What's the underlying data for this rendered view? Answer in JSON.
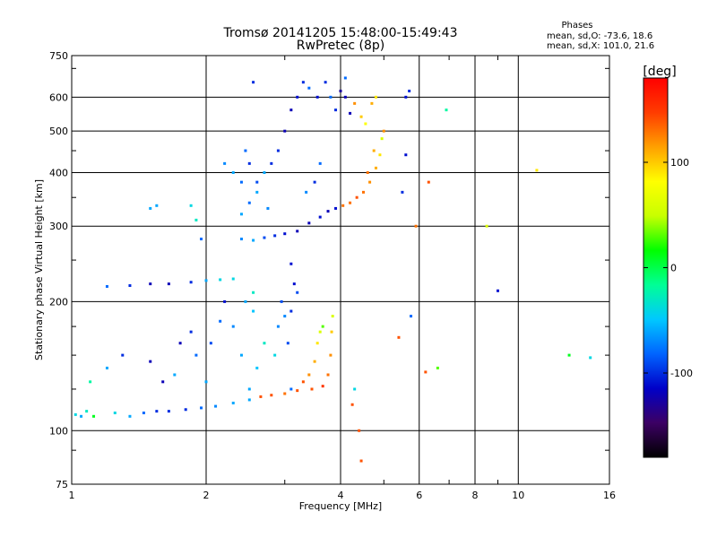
{
  "header": {
    "title_line1": "Tromsø 20141205 15:48:00-15:49:43",
    "title_line2": "RwPretec (8p)",
    "stats_heading": "Phases",
    "stats_line1": "mean, sd,O: -73.6, 18.6",
    "stats_line2": "mean, sd,X: 101.0, 21.6"
  },
  "colorbar": {
    "unit_label": "[deg]",
    "min": -180,
    "max": 180,
    "ticks": [
      {
        "value": 100,
        "label": "100"
      },
      {
        "value": 0,
        "label": "0"
      },
      {
        "value": -100,
        "label": "-100"
      }
    ],
    "colors": [
      "#000000",
      "#3c0064",
      "#0000c8",
      "#0064ff",
      "#00c8ff",
      "#00ff96",
      "#00ff00",
      "#c8ff00",
      "#ffff00",
      "#ffa000",
      "#ff3c00",
      "#ff0000"
    ]
  },
  "chart_data": {
    "type": "scatter",
    "xlabel": "Frequency [MHz]",
    "ylabel": "Stationary phase Virtual Height [km]",
    "x_scale": "log",
    "y_scale": "log",
    "xlim": [
      1,
      16
    ],
    "ylim": [
      75,
      750
    ],
    "grid": true,
    "xticks": [
      {
        "value": 1,
        "label": "1"
      },
      {
        "value": 2,
        "label": "2"
      },
      {
        "value": 4,
        "label": "4"
      },
      {
        "value": 6,
        "label": "6"
      },
      {
        "value": 8,
        "label": "8"
      },
      {
        "value": 10,
        "label": "10"
      },
      {
        "value": 16,
        "label": "16"
      }
    ],
    "yticks": [
      {
        "value": 75,
        "label": "75"
      },
      {
        "value": 100,
        "label": "100"
      },
      {
        "value": 200,
        "label": "200"
      },
      {
        "value": 300,
        "label": "300"
      },
      {
        "value": 400,
        "label": "400"
      },
      {
        "value": 500,
        "label": "500"
      },
      {
        "value": 600,
        "label": "600"
      },
      {
        "value": 750,
        "label": "750"
      }
    ],
    "minor_xticks": [
      3,
      5,
      7,
      9
    ],
    "minor_yticks": [
      90,
      125,
      150,
      175,
      250,
      350,
      450,
      700
    ],
    "points": [
      [
        1.02,
        109,
        -40
      ],
      [
        1.05,
        108,
        -60
      ],
      [
        1.08,
        111,
        -30
      ],
      [
        1.12,
        108,
        10
      ],
      [
        1.25,
        110,
        -40
      ],
      [
        1.35,
        108,
        -60
      ],
      [
        1.45,
        110,
        -80
      ],
      [
        1.55,
        111,
        -100
      ],
      [
        1.65,
        111,
        -100
      ],
      [
        1.8,
        112,
        -100
      ],
      [
        1.95,
        113,
        -80
      ],
      [
        2.1,
        114,
        -70
      ],
      [
        2.3,
        116,
        -60
      ],
      [
        2.5,
        118,
        -60
      ],
      [
        2.65,
        120,
        140
      ],
      [
        2.8,
        121,
        140
      ],
      [
        3.0,
        122,
        130
      ],
      [
        3.2,
        124,
        140
      ],
      [
        3.45,
        125,
        140
      ],
      [
        3.65,
        127,
        150
      ],
      [
        3.75,
        135,
        130
      ],
      [
        3.8,
        150,
        120
      ],
      [
        3.82,
        170,
        100
      ],
      [
        3.84,
        185,
        60
      ],
      [
        3.1,
        125,
        -80
      ],
      [
        3.3,
        130,
        140
      ],
      [
        3.4,
        135,
        120
      ],
      [
        3.5,
        145,
        110
      ],
      [
        3.55,
        160,
        90
      ],
      [
        3.6,
        170,
        60
      ],
      [
        3.65,
        175,
        30
      ],
      [
        1.1,
        130,
        -20
      ],
      [
        1.2,
        140,
        -60
      ],
      [
        1.3,
        150,
        -100
      ],
      [
        1.5,
        145,
        -120
      ],
      [
        1.6,
        130,
        -120
      ],
      [
        1.75,
        160,
        -120
      ],
      [
        1.85,
        170,
        -100
      ],
      [
        1.9,
        150,
        -80
      ],
      [
        1.7,
        135,
        -60
      ],
      [
        2.0,
        130,
        -60
      ],
      [
        2.05,
        160,
        -90
      ],
      [
        2.15,
        180,
        -80
      ],
      [
        2.2,
        200,
        -110
      ],
      [
        2.3,
        175,
        -70
      ],
      [
        2.4,
        150,
        -60
      ],
      [
        2.5,
        125,
        -60
      ],
      [
        2.6,
        140,
        -50
      ],
      [
        2.7,
        160,
        -30
      ],
      [
        2.85,
        150,
        -40
      ],
      [
        2.9,
        175,
        -70
      ],
      [
        2.95,
        200,
        -90
      ],
      [
        3.0,
        185,
        -70
      ],
      [
        3.05,
        160,
        -90
      ],
      [
        3.1,
        190,
        -100
      ],
      [
        3.15,
        220,
        -110
      ],
      [
        3.1,
        245,
        -110
      ],
      [
        3.2,
        210,
        -90
      ],
      [
        1.2,
        217,
        -80
      ],
      [
        1.35,
        218,
        -100
      ],
      [
        1.5,
        220,
        -120
      ],
      [
        1.65,
        220,
        -120
      ],
      [
        1.85,
        222,
        -100
      ],
      [
        2.0,
        224,
        -60
      ],
      [
        2.15,
        225,
        -40
      ],
      [
        2.3,
        226,
        -40
      ],
      [
        2.45,
        200,
        -60
      ],
      [
        2.55,
        210,
        -30
      ],
      [
        2.55,
        190,
        -50
      ],
      [
        1.5,
        330,
        -60
      ],
      [
        1.55,
        335,
        -60
      ],
      [
        1.85,
        335,
        -40
      ],
      [
        1.9,
        310,
        -30
      ],
      [
        1.95,
        280,
        -80
      ],
      [
        2.4,
        280,
        -70
      ],
      [
        2.55,
        278,
        -60
      ],
      [
        2.7,
        282,
        -90
      ],
      [
        2.85,
        285,
        -100
      ],
      [
        3.0,
        288,
        -110
      ],
      [
        3.2,
        292,
        -120
      ],
      [
        3.4,
        305,
        -120
      ],
      [
        3.6,
        315,
        -110
      ],
      [
        3.75,
        325,
        -120
      ],
      [
        3.9,
        330,
        -110
      ],
      [
        4.05,
        335,
        130
      ],
      [
        4.2,
        340,
        130
      ],
      [
        4.35,
        350,
        140
      ],
      [
        4.5,
        360,
        130
      ],
      [
        4.65,
        380,
        120
      ],
      [
        4.8,
        410,
        110
      ],
      [
        4.9,
        440,
        90
      ],
      [
        4.95,
        480,
        60
      ],
      [
        4.6,
        400,
        130
      ],
      [
        4.75,
        450,
        110
      ],
      [
        2.2,
        420,
        -70
      ],
      [
        2.3,
        400,
        -60
      ],
      [
        2.4,
        380,
        -80
      ],
      [
        2.45,
        450,
        -80
      ],
      [
        2.5,
        420,
        -100
      ],
      [
        2.6,
        380,
        -90
      ],
      [
        2.7,
        400,
        -60
      ],
      [
        2.8,
        420,
        -100
      ],
      [
        2.9,
        450,
        -100
      ],
      [
        3.0,
        500,
        -120
      ],
      [
        3.1,
        560,
        -120
      ],
      [
        3.2,
        600,
        -110
      ],
      [
        3.3,
        650,
        -100
      ],
      [
        3.4,
        630,
        -80
      ],
      [
        3.55,
        600,
        -110
      ],
      [
        3.7,
        650,
        -100
      ],
      [
        3.8,
        600,
        -80
      ],
      [
        3.9,
        560,
        -100
      ],
      [
        4.0,
        620,
        -130
      ],
      [
        4.1,
        600,
        -120
      ],
      [
        4.2,
        550,
        -120
      ],
      [
        4.3,
        580,
        120
      ],
      [
        4.45,
        540,
        100
      ],
      [
        4.55,
        520,
        80
      ],
      [
        4.7,
        580,
        110
      ],
      [
        4.8,
        600,
        90
      ],
      [
        5.0,
        500,
        120
      ],
      [
        5.6,
        600,
        -110
      ],
      [
        5.7,
        620,
        -100
      ],
      [
        2.55,
        650,
        -100
      ],
      [
        4.1,
        665,
        -80
      ],
      [
        6.9,
        560,
        -20
      ],
      [
        2.4,
        320,
        -60
      ],
      [
        2.5,
        340,
        -80
      ],
      [
        2.6,
        360,
        -60
      ],
      [
        2.75,
        330,
        -70
      ],
      [
        3.35,
        360,
        -70
      ],
      [
        3.5,
        380,
        -100
      ],
      [
        3.6,
        420,
        -80
      ],
      [
        5.9,
        300,
        130
      ],
      [
        5.5,
        360,
        -100
      ],
      [
        5.6,
        440,
        -110
      ],
      [
        6.3,
        380,
        140
      ],
      [
        8.5,
        300,
        60
      ],
      [
        11.0,
        405,
        90
      ],
      [
        4.3,
        125,
        -40
      ],
      [
        4.25,
        115,
        140
      ],
      [
        4.4,
        100,
        140
      ],
      [
        4.45,
        85,
        140
      ],
      [
        5.4,
        165,
        140
      ],
      [
        5.75,
        185,
        -80
      ],
      [
        6.2,
        137,
        140
      ],
      [
        6.6,
        140,
        30
      ],
      [
        9.0,
        212,
        -110
      ],
      [
        13.0,
        150,
        10
      ],
      [
        14.5,
        148,
        -40
      ]
    ]
  }
}
